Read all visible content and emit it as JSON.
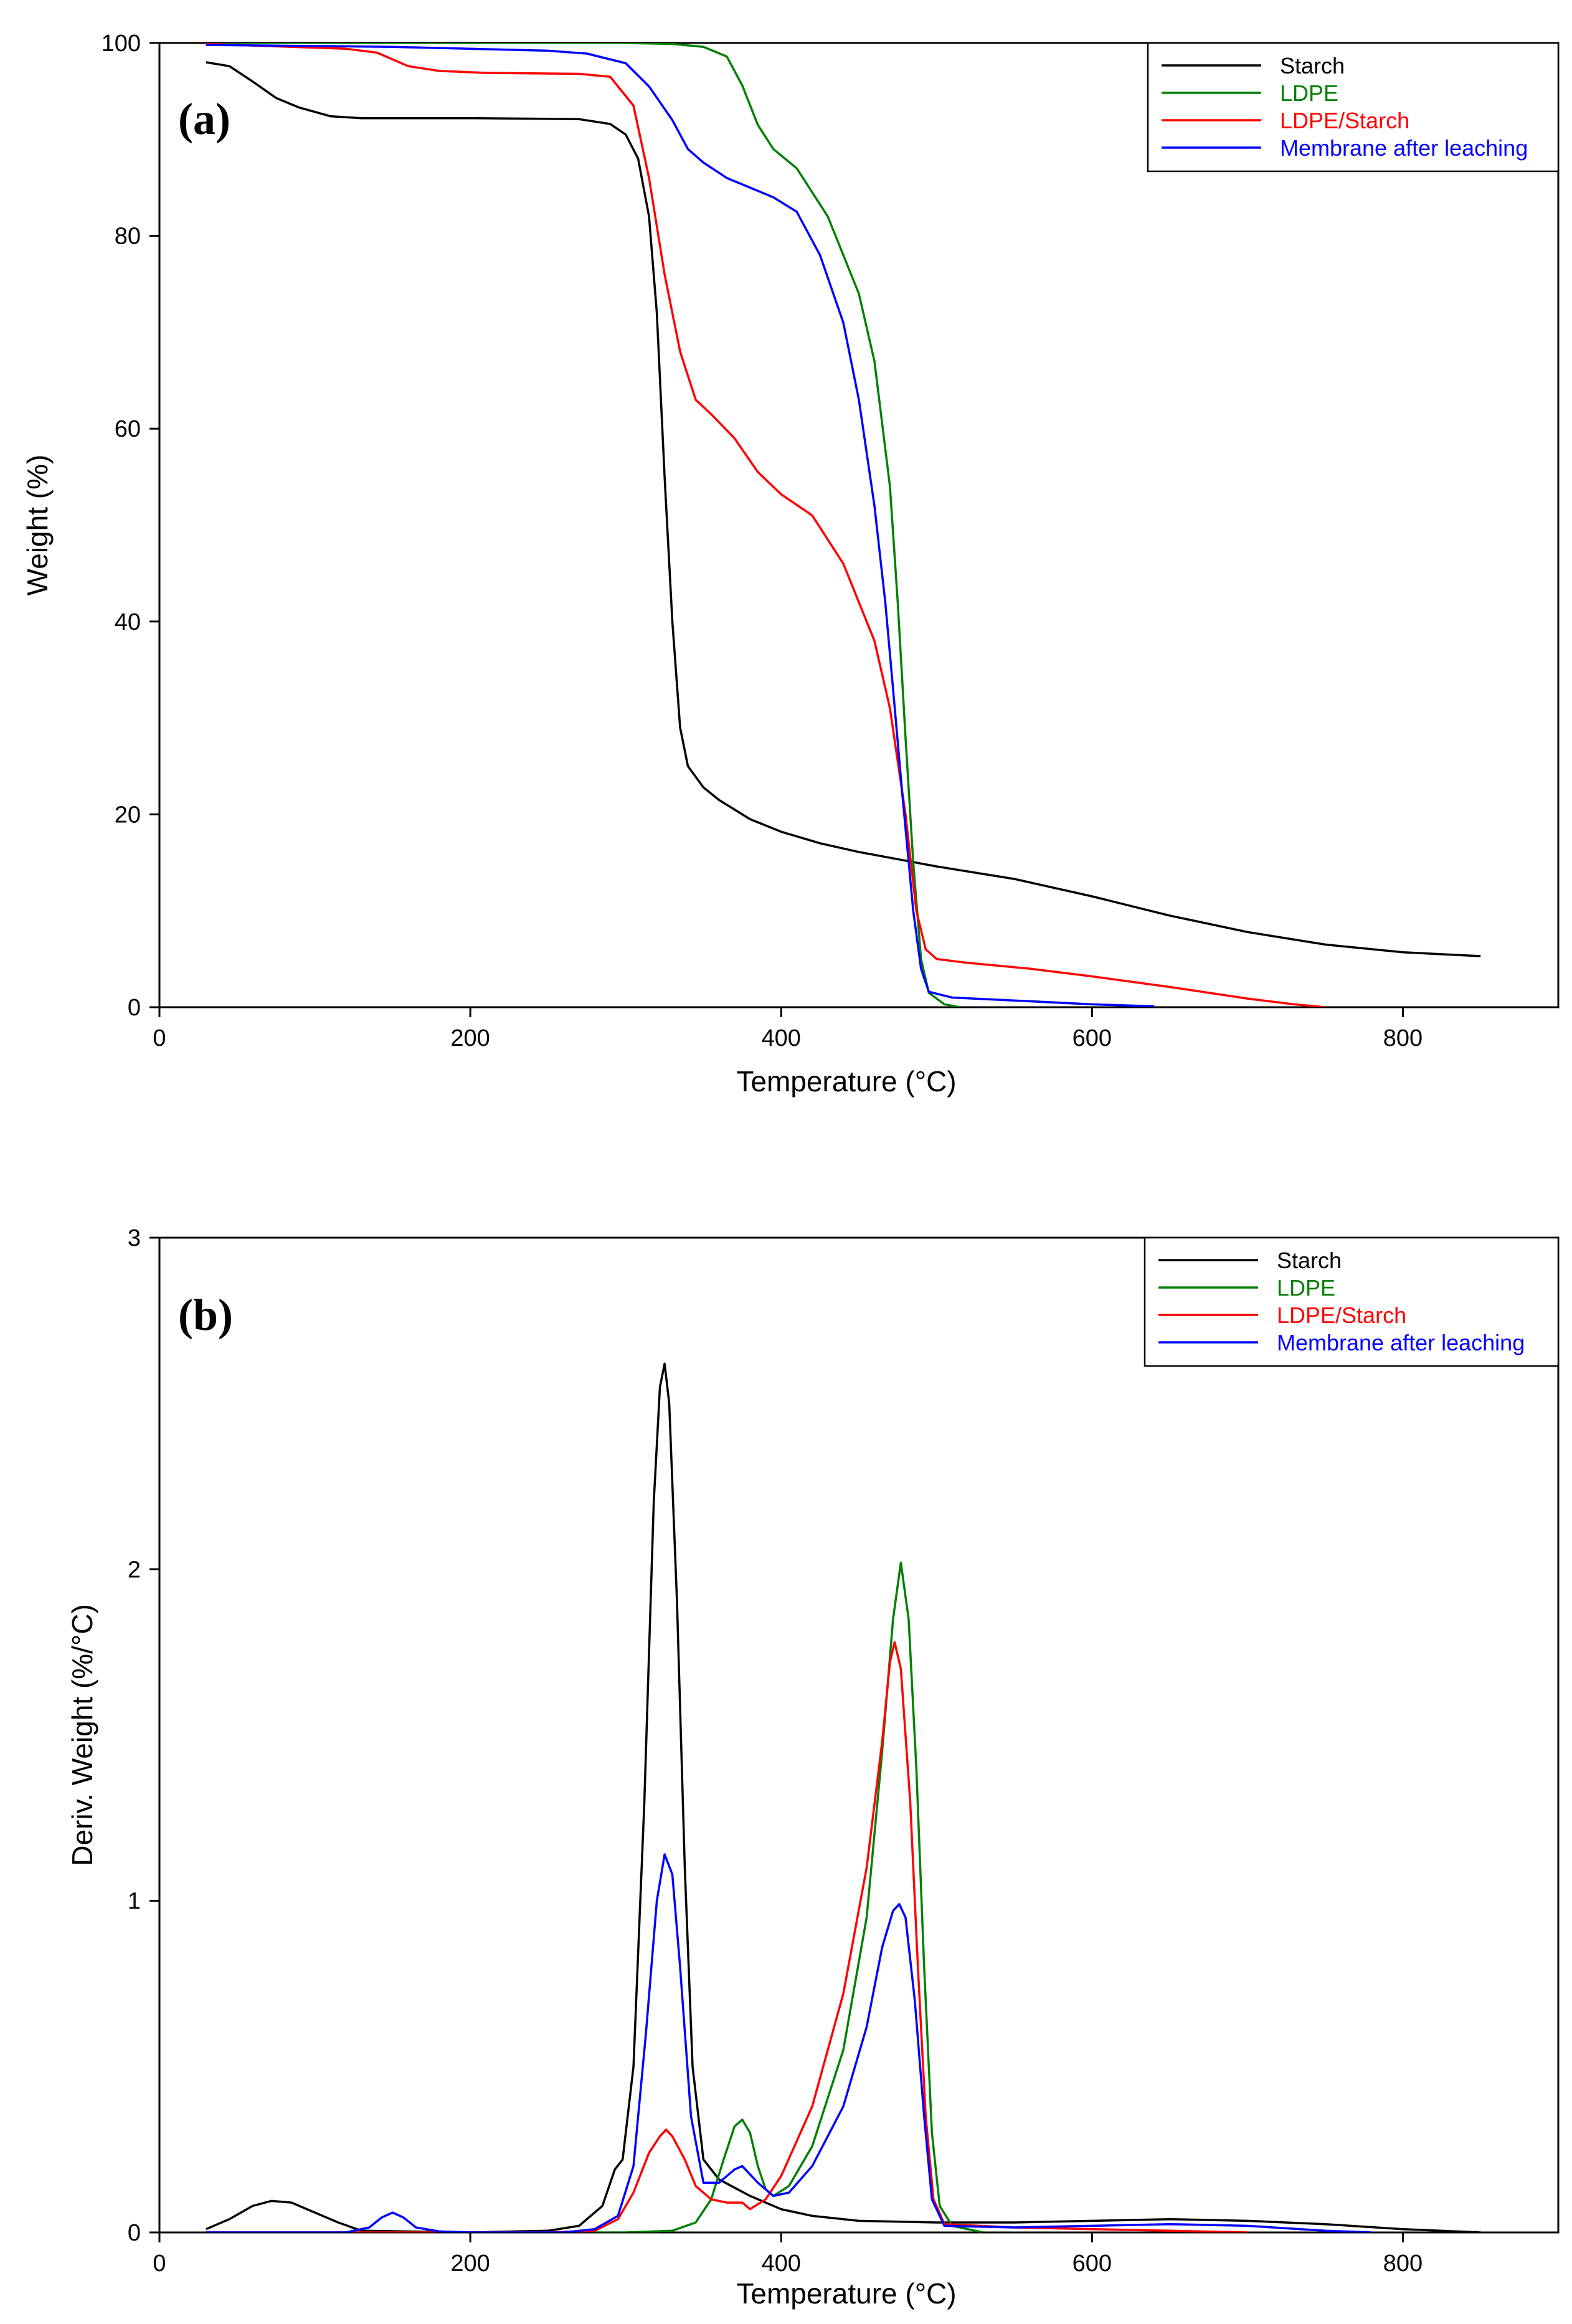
{
  "chart_data": [
    {
      "id": "a",
      "type": "line",
      "panel_label": "(a)",
      "title": "",
      "xlabel": "Temperature (°C)",
      "ylabel": "Weight (%)",
      "xlim": [
        0,
        900
      ],
      "ylim": [
        0,
        100
      ],
      "xticks": [
        0,
        200,
        400,
        600,
        800
      ],
      "yticks": [
        0,
        20,
        40,
        60,
        80,
        100
      ],
      "legend_position": "top-right",
      "series": [
        {
          "name": "Starch",
          "color": "#000000",
          "points": [
            [
              30,
              98
            ],
            [
              45,
              97.6
            ],
            [
              60,
              96
            ],
            [
              75,
              94.3
            ],
            [
              90,
              93.3
            ],
            [
              110,
              92.4
            ],
            [
              130,
              92.2
            ],
            [
              200,
              92.2
            ],
            [
              270,
              92.1
            ],
            [
              290,
              91.6
            ],
            [
              300,
              90.5
            ],
            [
              308,
              88
            ],
            [
              315,
              82
            ],
            [
              320,
              72
            ],
            [
              325,
              55
            ],
            [
              330,
              40
            ],
            [
              335,
              29
            ],
            [
              340,
              25
            ],
            [
              350,
              22.8
            ],
            [
              360,
              21.5
            ],
            [
              380,
              19.5
            ],
            [
              400,
              18.2
            ],
            [
              425,
              17
            ],
            [
              450,
              16.1
            ],
            [
              480,
              15.2
            ],
            [
              500,
              14.6
            ],
            [
              550,
              13.3
            ],
            [
              600,
              11.5
            ],
            [
              650,
              9.5
            ],
            [
              700,
              7.8
            ],
            [
              750,
              6.5
            ],
            [
              800,
              5.7
            ],
            [
              850,
              5.3
            ]
          ]
        },
        {
          "name": "LDPE",
          "color": "#008000",
          "points": [
            [
              30,
              100
            ],
            [
              300,
              100
            ],
            [
              330,
              99.9
            ],
            [
              350,
              99.6
            ],
            [
              365,
              98.6
            ],
            [
              375,
              95.6
            ],
            [
              385,
              91.5
            ],
            [
              395,
              89
            ],
            [
              410,
              87
            ],
            [
              430,
              82
            ],
            [
              450,
              74
            ],
            [
              460,
              67
            ],
            [
              470,
              54
            ],
            [
              475,
              42
            ],
            [
              480,
              28
            ],
            [
              485,
              15
            ],
            [
              490,
              5
            ],
            [
              495,
              1.5
            ],
            [
              505,
              0.3
            ],
            [
              515,
              0
            ]
          ]
        },
        {
          "name": "LDPE/Starch",
          "color": "#ff0000",
          "points": [
            [
              30,
              99.9
            ],
            [
              120,
              99.4
            ],
            [
              140,
              99
            ],
            [
              160,
              97.6
            ],
            [
              180,
              97.1
            ],
            [
              210,
              96.9
            ],
            [
              270,
              96.8
            ],
            [
              290,
              96.5
            ],
            [
              305,
              93.5
            ],
            [
              315,
              86
            ],
            [
              325,
              76
            ],
            [
              335,
              68
            ],
            [
              345,
              63
            ],
            [
              355,
              61.5
            ],
            [
              370,
              59
            ],
            [
              385,
              55.5
            ],
            [
              400,
              53.2
            ],
            [
              420,
              51
            ],
            [
              440,
              46
            ],
            [
              460,
              38
            ],
            [
              470,
              31
            ],
            [
              480,
              20
            ],
            [
              487,
              10
            ],
            [
              493,
              6
            ],
            [
              500,
              5
            ],
            [
              520,
              4.6
            ],
            [
              560,
              4
            ],
            [
              600,
              3.2
            ],
            [
              650,
              2.1
            ],
            [
              700,
              0.9
            ],
            [
              730,
              0.3
            ],
            [
              750,
              0
            ]
          ]
        },
        {
          "name": "Membrane after leaching",
          "color": "#0000ff",
          "points": [
            [
              30,
              99.8
            ],
            [
              150,
              99.6
            ],
            [
              250,
              99.2
            ],
            [
              275,
              98.9
            ],
            [
              300,
              97.9
            ],
            [
              315,
              95.5
            ],
            [
              330,
              92
            ],
            [
              340,
              89
            ],
            [
              350,
              87.6
            ],
            [
              365,
              86
            ],
            [
              380,
              85
            ],
            [
              395,
              84
            ],
            [
              410,
              82.5
            ],
            [
              425,
              78
            ],
            [
              440,
              71
            ],
            [
              450,
              63
            ],
            [
              460,
              52
            ],
            [
              467,
              42
            ],
            [
              472,
              33
            ],
            [
              478,
              22
            ],
            [
              485,
              10
            ],
            [
              490,
              4
            ],
            [
              495,
              1.6
            ],
            [
              510,
              1
            ],
            [
              550,
              0.7
            ],
            [
              600,
              0.3
            ],
            [
              640,
              0.1
            ]
          ]
        }
      ]
    },
    {
      "id": "b",
      "type": "line",
      "panel_label": "(b)",
      "title": "",
      "xlabel": "Temperature (°C)",
      "ylabel": "Deriv. Weight (%/°C)",
      "xlim": [
        0,
        900
      ],
      "ylim": [
        0,
        3
      ],
      "xticks": [
        0,
        200,
        400,
        600,
        800
      ],
      "yticks": [
        0,
        1,
        2,
        3
      ],
      "legend_position": "top-right",
      "series": [
        {
          "name": "Starch",
          "color": "#000000",
          "points": [
            [
              30,
              0.01
            ],
            [
              45,
              0.04
            ],
            [
              60,
              0.08
            ],
            [
              72,
              0.095
            ],
            [
              85,
              0.09
            ],
            [
              100,
              0.06
            ],
            [
              115,
              0.03
            ],
            [
              130,
              0.005
            ],
            [
              200,
              0
            ],
            [
              250,
              0.005
            ],
            [
              270,
              0.02
            ],
            [
              285,
              0.08
            ],
            [
              293,
              0.19
            ],
            [
              298,
              0.22
            ],
            [
              305,
              0.5
            ],
            [
              312,
              1.3
            ],
            [
              318,
              2.2
            ],
            [
              322,
              2.55
            ],
            [
              325,
              2.62
            ],
            [
              328,
              2.5
            ],
            [
              333,
              1.9
            ],
            [
              338,
              1.1
            ],
            [
              343,
              0.5
            ],
            [
              350,
              0.22
            ],
            [
              360,
              0.16
            ],
            [
              380,
              0.11
            ],
            [
              400,
              0.07
            ],
            [
              420,
              0.05
            ],
            [
              450,
              0.035
            ],
            [
              500,
              0.03
            ],
            [
              550,
              0.03
            ],
            [
              600,
              0.035
            ],
            [
              650,
              0.04
            ],
            [
              700,
              0.035
            ],
            [
              750,
              0.025
            ],
            [
              800,
              0.01
            ],
            [
              850,
              0
            ]
          ]
        },
        {
          "name": "LDPE",
          "color": "#008000",
          "points": [
            [
              30,
              0
            ],
            [
              300,
              0
            ],
            [
              330,
              0.005
            ],
            [
              345,
              0.03
            ],
            [
              355,
              0.1
            ],
            [
              363,
              0.22
            ],
            [
              370,
              0.32
            ],
            [
              375,
              0.34
            ],
            [
              380,
              0.3
            ],
            [
              385,
              0.2
            ],
            [
              390,
              0.13
            ],
            [
              395,
              0.11
            ],
            [
              405,
              0.14
            ],
            [
              420,
              0.26
            ],
            [
              440,
              0.55
            ],
            [
              455,
              0.95
            ],
            [
              465,
              1.45
            ],
            [
              472,
              1.85
            ],
            [
              477,
              2.02
            ],
            [
              482,
              1.85
            ],
            [
              487,
              1.4
            ],
            [
              492,
              0.8
            ],
            [
              497,
              0.3
            ],
            [
              502,
              0.08
            ],
            [
              510,
              0.02
            ],
            [
              530,
              0
            ]
          ]
        },
        {
          "name": "LDPE/Starch",
          "color": "#ff0000",
          "points": [
            [
              30,
              0
            ],
            [
              250,
              0
            ],
            [
              280,
              0.005
            ],
            [
              295,
              0.04
            ],
            [
              305,
              0.12
            ],
            [
              315,
              0.24
            ],
            [
              322,
              0.29
            ],
            [
              326,
              0.31
            ],
            [
              330,
              0.29
            ],
            [
              338,
              0.22
            ],
            [
              345,
              0.14
            ],
            [
              355,
              0.1
            ],
            [
              365,
              0.09
            ],
            [
              375,
              0.09
            ],
            [
              380,
              0.07
            ],
            [
              390,
              0.1
            ],
            [
              400,
              0.17
            ],
            [
              420,
              0.38
            ],
            [
              440,
              0.72
            ],
            [
              455,
              1.1
            ],
            [
              465,
              1.48
            ],
            [
              470,
              1.72
            ],
            [
              473,
              1.78
            ],
            [
              477,
              1.7
            ],
            [
              483,
              1.3
            ],
            [
              488,
              0.8
            ],
            [
              493,
              0.35
            ],
            [
              498,
              0.1
            ],
            [
              505,
              0.025
            ],
            [
              550,
              0.015
            ],
            [
              600,
              0.01
            ],
            [
              650,
              0.005
            ],
            [
              700,
              0
            ]
          ]
        },
        {
          "name": "Membrane after leaching",
          "color": "#0000ff",
          "points": [
            [
              30,
              0
            ],
            [
              120,
              0
            ],
            [
              135,
              0.015
            ],
            [
              143,
              0.045
            ],
            [
              150,
              0.06
            ],
            [
              157,
              0.045
            ],
            [
              165,
              0.015
            ],
            [
              180,
              0.003
            ],
            [
              200,
              0
            ],
            [
              260,
              0
            ],
            [
              280,
              0.01
            ],
            [
              295,
              0.05
            ],
            [
              305,
              0.2
            ],
            [
              313,
              0.6
            ],
            [
              320,
              1
            ],
            [
              325,
              1.14
            ],
            [
              330,
              1.08
            ],
            [
              335,
              0.8
            ],
            [
              342,
              0.35
            ],
            [
              350,
              0.15
            ],
            [
              360,
              0.15
            ],
            [
              370,
              0.19
            ],
            [
              375,
              0.2
            ],
            [
              385,
              0.15
            ],
            [
              395,
              0.11
            ],
            [
              405,
              0.12
            ],
            [
              420,
              0.2
            ],
            [
              440,
              0.38
            ],
            [
              455,
              0.62
            ],
            [
              465,
              0.86
            ],
            [
              472,
              0.97
            ],
            [
              476,
              0.99
            ],
            [
              480,
              0.95
            ],
            [
              486,
              0.7
            ],
            [
              492,
              0.35
            ],
            [
              497,
              0.1
            ],
            [
              505,
              0.02
            ],
            [
              550,
              0.015
            ],
            [
              600,
              0.02
            ],
            [
              650,
              0.025
            ],
            [
              700,
              0.02
            ],
            [
              750,
              0.005
            ],
            [
              780,
              0
            ]
          ]
        }
      ]
    }
  ]
}
